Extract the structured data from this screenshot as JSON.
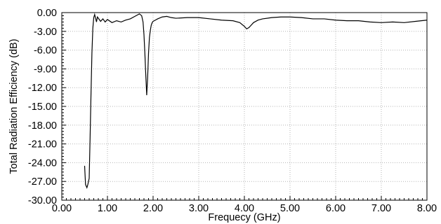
{
  "chart_data": {
    "type": "line",
    "xlabel": "Frequecy (GHz)",
    "ylabel": "Total Radiation Efficiency (dB)",
    "xlim": [
      0,
      8
    ],
    "ylim": [
      -30,
      0
    ],
    "grid": true,
    "x_ticks": [
      0,
      1,
      2,
      3,
      4,
      5,
      6,
      7,
      8
    ],
    "x_tick_labels": [
      "0.00",
      "1.00",
      "2.00",
      "3.00",
      "4.00",
      "5.00",
      "6.00",
      "7.00",
      "8.00"
    ],
    "y_ticks": [
      0,
      -3,
      -6,
      -9,
      -12,
      -15,
      -18,
      -21,
      -24,
      -27,
      -30
    ],
    "y_tick_labels": [
      "0.00",
      "-3.00",
      "-6.00",
      "-9.00",
      "-12.00",
      "-15.00",
      "-18.00",
      "-21.00",
      "-24.00",
      "-27.00",
      "-30.00"
    ],
    "series": [
      {
        "color": "#000000",
        "x": [
          0.5,
          0.52,
          0.55,
          0.57,
          0.6,
          0.62,
          0.64,
          0.66,
          0.68,
          0.7,
          0.72,
          0.74,
          0.76,
          0.78,
          0.8,
          0.85,
          0.9,
          0.95,
          1.0,
          1.1,
          1.2,
          1.3,
          1.4,
          1.5,
          1.6,
          1.7,
          1.75,
          1.78,
          1.8,
          1.82,
          1.84,
          1.86,
          1.88,
          1.9,
          1.92,
          1.94,
          1.96,
          1.98,
          2.0,
          2.05,
          2.1,
          2.2,
          2.3,
          2.4,
          2.5,
          2.75,
          3.0,
          3.25,
          3.5,
          3.75,
          3.9,
          4.0,
          4.05,
          4.1,
          4.15,
          4.2,
          4.3,
          4.4,
          4.6,
          4.8,
          5.0,
          5.25,
          5.5,
          5.75,
          6.0,
          6.25,
          6.5,
          6.75,
          7.0,
          7.25,
          7.5,
          7.75,
          8.0
        ],
        "y": [
          -24.5,
          -27.5,
          -28.0,
          -27.5,
          -26.5,
          -20.0,
          -13.0,
          -6.5,
          -2.5,
          -0.8,
          -0.3,
          -0.9,
          -1.5,
          -0.7,
          -0.9,
          -1.4,
          -1.0,
          -1.5,
          -1.1,
          -1.6,
          -1.3,
          -1.5,
          -1.2,
          -1.0,
          -0.6,
          -0.2,
          -0.5,
          -1.5,
          -3.5,
          -6.5,
          -10.0,
          -13.2,
          -10.5,
          -6.5,
          -4.0,
          -2.8,
          -2.0,
          -1.6,
          -1.4,
          -1.2,
          -1.0,
          -0.7,
          -0.6,
          -0.8,
          -0.9,
          -0.8,
          -0.8,
          -1.0,
          -1.2,
          -1.3,
          -1.6,
          -2.2,
          -2.6,
          -2.4,
          -2.0,
          -1.6,
          -1.2,
          -1.0,
          -0.8,
          -0.7,
          -0.7,
          -0.8,
          -1.0,
          -1.0,
          -1.2,
          -1.3,
          -1.3,
          -1.5,
          -1.6,
          -1.5,
          -1.6,
          -1.4,
          -1.2
        ]
      }
    ]
  }
}
